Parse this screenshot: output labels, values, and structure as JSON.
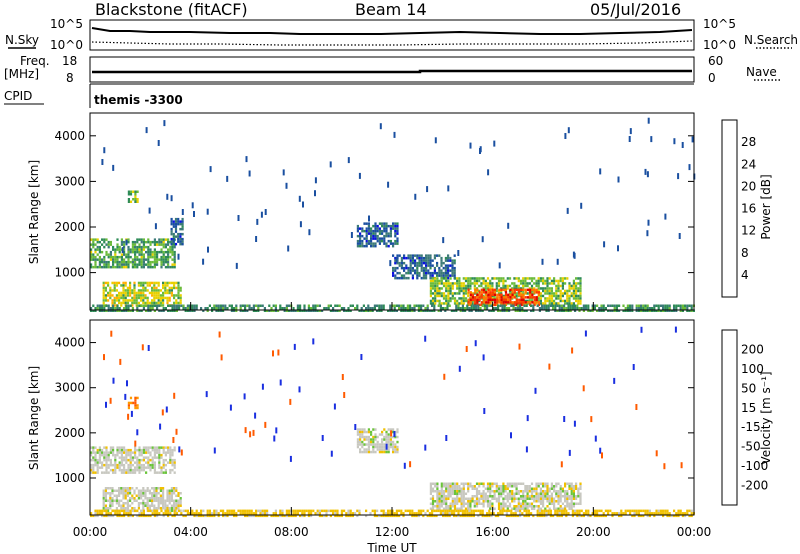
{
  "header": {
    "station": "Blackstone (fitACF)",
    "beam": "Beam 14",
    "date": "05/Jul/2016"
  },
  "top_panels": {
    "nsky_label": "N.Sky",
    "nsearch_label": "N.Search",
    "noise_max_left": "10^5",
    "noise_min_left": "10^0",
    "noise_max_right": "10^5",
    "noise_min_right": "10^0",
    "freq_label": "Freq.",
    "freq_unit": "[MHz]",
    "freq_max": "18",
    "freq_min": "8",
    "nave_label": "Nave",
    "nave_max": "60",
    "nave_min": "0",
    "cpid_label": "CPID",
    "cpid_value": "themis -3300"
  },
  "x_axis": {
    "ticks": [
      "00:00",
      "04:00",
      "08:00",
      "12:00",
      "16:00",
      "20:00",
      "00:00"
    ],
    "label": "Time UT"
  },
  "colorbars": {
    "power": {
      "label": "Power [dB]",
      "ticks": [
        "28",
        "24",
        "20",
        "16",
        "12",
        "8",
        "4"
      ],
      "colors": [
        "#e00000",
        "#ff3a00",
        "#ff7a00",
        "#ffb000",
        "#e8d000",
        "#6abb3a",
        "#2e8b57",
        "#3c7a78",
        "#1a4fa0",
        "#0a10e0"
      ]
    },
    "velocity": {
      "label": "Velocity [m s⁻¹]",
      "ticks": [
        "200",
        "100",
        "50",
        "15",
        "-15",
        "-50",
        "-100",
        "-200"
      ],
      "colors": [
        "#1a2fe0",
        "#1f5faa",
        "#2e8b57",
        "#6ac43a",
        "#c8c8c0",
        "#f0c000",
        "#ff9a00",
        "#ff5a00",
        "#ff0000"
      ]
    }
  },
  "chart_data": [
    {
      "type": "heatmap",
      "title": "Power",
      "xlabel": "Time UT",
      "ylabel": "Slant Range [km]",
      "ylabel_right": "Power [dB]",
      "xlim": [
        "00:00",
        "24:00"
      ],
      "ylim": [
        180,
        4500
      ],
      "y_ticks": [
        1000,
        2000,
        3000,
        4000
      ],
      "color_range_db": [
        0,
        32
      ],
      "features": [
        {
          "t": [
            0.0,
            3.4
          ],
          "r": [
            1100,
            1750
          ],
          "level_db": 14
        },
        {
          "t": [
            0.5,
            3.6
          ],
          "r": [
            300,
            800
          ],
          "level_db": 18
        },
        {
          "t": [
            1.5,
            1.9
          ],
          "r": [
            2550,
            2800
          ],
          "level_db": 16
        },
        {
          "t": [
            3.2,
            3.7
          ],
          "r": [
            1600,
            2200
          ],
          "level_db": 8
        },
        {
          "t": [
            10.6,
            12.2
          ],
          "r": [
            1600,
            2100
          ],
          "level_db": 8
        },
        {
          "t": [
            12.0,
            14.5
          ],
          "r": [
            900,
            1400
          ],
          "level_db": 8
        },
        {
          "t": [
            13.5,
            19.5
          ],
          "r": [
            300,
            900
          ],
          "level_db": 16
        },
        {
          "t": [
            15.0,
            17.8
          ],
          "r": [
            300,
            650
          ],
          "level_db": 28
        },
        {
          "t": [
            0.0,
            24.0
          ],
          "r": [
            180,
            300
          ],
          "level_db": 12
        }
      ]
    },
    {
      "type": "heatmap",
      "title": "Velocity",
      "xlabel": "Time UT",
      "ylabel": "Slant Range [km]",
      "ylabel_right": "Velocity [m s-1]",
      "xlim": [
        "00:00",
        "24:00"
      ],
      "ylim": [
        180,
        4500
      ],
      "y_ticks": [
        1000,
        2000,
        3000,
        4000
      ],
      "color_range_ms": [
        -250,
        250
      ],
      "features": [
        {
          "t": [
            0.0,
            3.4
          ],
          "r": [
            1100,
            1700
          ],
          "velocity_ms": 0
        },
        {
          "t": [
            0.5,
            3.6
          ],
          "r": [
            300,
            800
          ],
          "velocity_ms": 0
        },
        {
          "t": [
            1.5,
            1.9
          ],
          "r": [
            2550,
            2800
          ],
          "velocity_ms": -100
        },
        {
          "t": [
            10.6,
            12.2
          ],
          "r": [
            1600,
            2100
          ],
          "velocity_ms": 0
        },
        {
          "t": [
            13.5,
            19.5
          ],
          "r": [
            300,
            900
          ],
          "velocity_ms": 0
        },
        {
          "t": [
            0.0,
            24.0
          ],
          "r": [
            180,
            300
          ],
          "velocity_ms": -30
        }
      ]
    }
  ]
}
